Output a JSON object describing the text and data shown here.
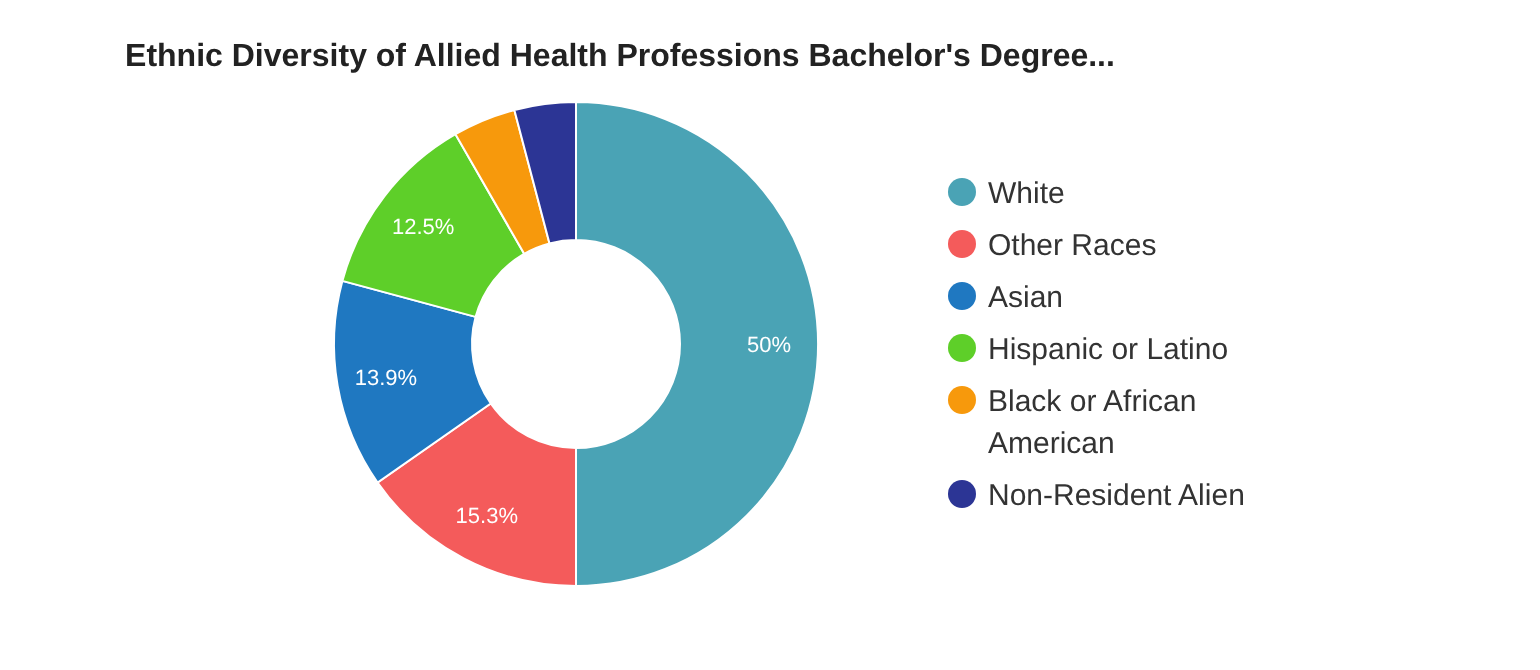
{
  "chart_data": {
    "type": "donut",
    "title": "Ethnic Diversity of Allied Health Professions Bachelor's Degree...",
    "categories": [
      "White",
      "Other Races",
      "Asian",
      "Hispanic or Latino",
      "Black or African American",
      "Non-Resident Alien"
    ],
    "values": [
      50,
      15.3,
      13.9,
      12.5,
      4.2,
      4.1
    ],
    "colors": [
      "#4aa3b5",
      "#f45b5b",
      "#1f78c1",
      "#5ecf29",
      "#f7990c",
      "#2c3595"
    ],
    "value_labels": [
      "50%",
      "15.3%",
      "13.9%",
      "12.5%",
      null,
      null
    ],
    "legend": "right"
  }
}
